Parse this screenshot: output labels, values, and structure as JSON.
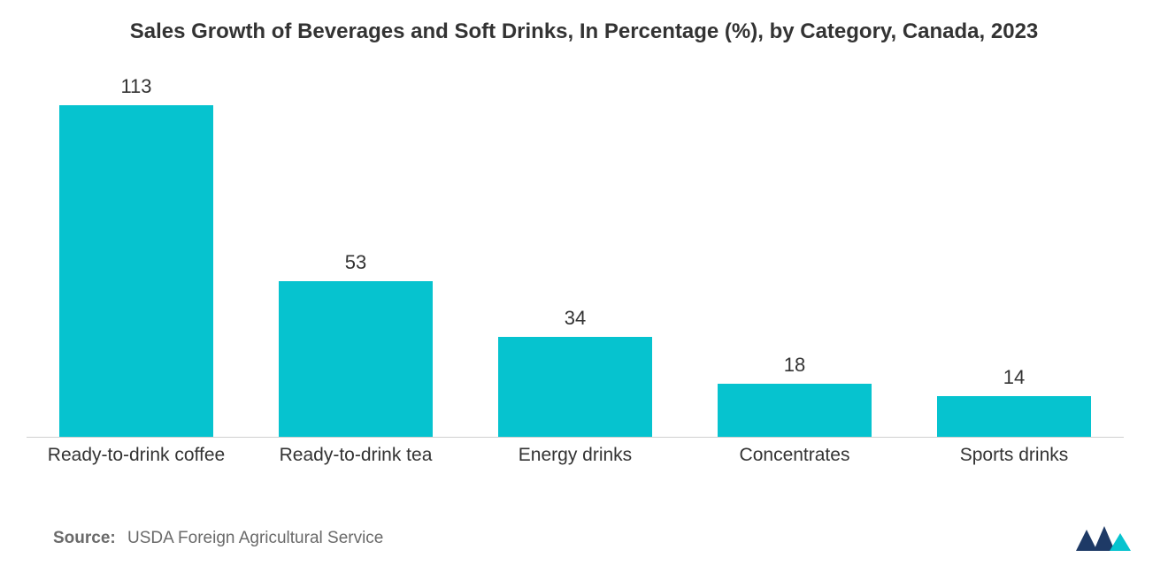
{
  "chart": {
    "type": "bar",
    "title": "Sales Growth of Beverages and Soft Drinks, In Percentage (%), by Category, Canada, 2023",
    "title_fontsize": 24,
    "title_color": "#333333",
    "categories": [
      "Ready-to-drink coffee",
      "Ready-to-drink tea",
      "Energy drinks",
      "Concentrates",
      "Sports drinks"
    ],
    "values": [
      113,
      53,
      34,
      18,
      14
    ],
    "bar_color": "#06c3cf",
    "bar_width_pct": 78,
    "value_label_fontsize": 22,
    "value_label_color": "#333333",
    "x_label_fontsize": 21,
    "x_label_color": "#333333",
    "background_color": "#ffffff",
    "ymax": 113,
    "ymin": 0,
    "baseline_color": "#d0d0d0"
  },
  "source": {
    "label": "Source:",
    "text": "USDA Foreign Agricultural Service",
    "fontsize": 19,
    "color": "#6a6a6a"
  },
  "logo": {
    "name": "mordor-intelligence-logo",
    "colors": {
      "dark": "#1e3a66",
      "accent": "#06c3cf"
    }
  }
}
